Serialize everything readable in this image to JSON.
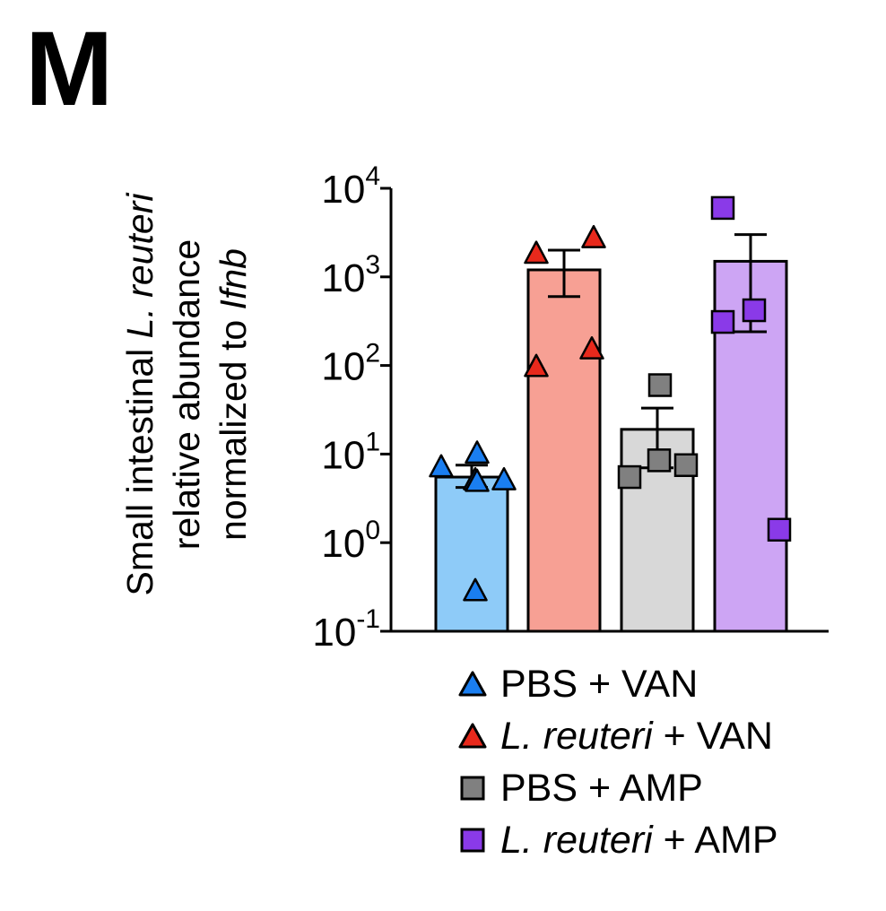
{
  "panel_label": "M",
  "chart_data": {
    "type": "bar",
    "scale": "log",
    "ylim": [
      0.1,
      10000
    ],
    "yticks": [
      {
        "value": 0.1,
        "base": "10",
        "exp": "-1"
      },
      {
        "value": 1,
        "base": "10",
        "exp": "0"
      },
      {
        "value": 10,
        "base": "10",
        "exp": "1"
      },
      {
        "value": 100,
        "base": "10",
        "exp": "2"
      },
      {
        "value": 1000,
        "base": "10",
        "exp": "3"
      },
      {
        "value": 10000,
        "base": "10",
        "exp": "4"
      }
    ],
    "ylabel": {
      "line1_prefix": "Small intestinal ",
      "line1_italic": "L. reuteri",
      "line2": "relative abundance",
      "line3_prefix": "normalized to ",
      "line3_italic": "Ifnb"
    },
    "groups": [
      {
        "name_italic": "",
        "name_plain": "PBS + VAN",
        "mean": 5.5,
        "err_low": 4.2,
        "err_high": 7.5,
        "marker": "triangle",
        "fill": "#8ecbf8",
        "marker_color": "#1a7ef0",
        "points": [
          7.0,
          10.0,
          5.0,
          4.8,
          5.0,
          0.28
        ]
      },
      {
        "name_italic": "L. reuteri",
        "name_plain": " + VAN",
        "mean": 1200,
        "err_low": 600,
        "err_high": 2000,
        "marker": "triangle",
        "fill": "#f7a094",
        "marker_color": "#e8291c",
        "points": [
          1800,
          2700,
          95,
          150
        ]
      },
      {
        "name_italic": "",
        "name_plain": "PBS + AMP",
        "mean": 19,
        "err_low": 7,
        "err_high": 33,
        "marker": "square",
        "fill": "#d8d8d8",
        "marker_color": "#808080",
        "points": [
          5.5,
          60,
          8.5,
          7.5
        ]
      },
      {
        "name_italic": "L. reuteri",
        "name_plain": " + AMP",
        "mean": 1500,
        "err_low": 240,
        "err_high": 3000,
        "marker": "square",
        "fill": "#cda5f4",
        "marker_color": "#8a3ae8",
        "points": [
          6000,
          420,
          310,
          1.4
        ]
      }
    ]
  }
}
